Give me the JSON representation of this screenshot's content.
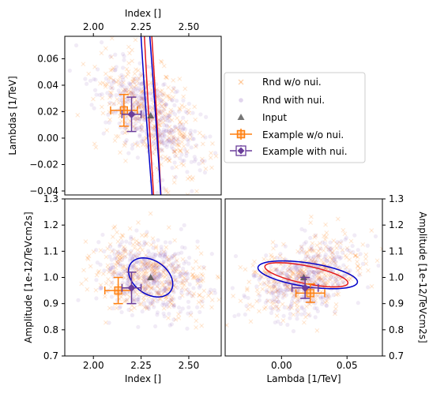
{
  "figure": {
    "legend": {
      "placement": "right of top-left panel",
      "entries": [
        {
          "label": "Rnd w/o nui.",
          "marker": "x-cross",
          "color": "#ff7f0e"
        },
        {
          "label": "Rnd with nui.",
          "marker": "dot",
          "color": "#9467bd"
        },
        {
          "label": "Input",
          "marker": "triangle",
          "color": "#555555"
        },
        {
          "label": "Example w/o nui.",
          "marker": "square-errorbar",
          "color": "#ff7f0e"
        },
        {
          "label": "Example with nui.",
          "marker": "diamond-errorbar",
          "color": "#6a3d9a"
        }
      ]
    }
  },
  "chart_data": [
    {
      "id": "lambda-vs-index",
      "type": "scatter",
      "panel": "top-left",
      "xlabel": "Index []",
      "xlabel_position": "top",
      "ylabel": "Lambdas [1/TeV]",
      "xlim": [
        1.85,
        2.67
      ],
      "ylim": [
        -0.043,
        0.077
      ],
      "xticks": [
        2.0,
        2.25,
        2.5
      ],
      "xtick_labels": [
        "2.00",
        "2.25",
        "2.50"
      ],
      "yticks": [
        -0.04,
        -0.02,
        0.0,
        0.02,
        0.04,
        0.06
      ],
      "ytick_labels": [
        "−0.04",
        "−0.02",
        "0.00",
        "0.02",
        "0.04",
        "0.06"
      ],
      "random_cloud": {
        "center": [
          2.3,
          0.017
        ],
        "sd": [
          0.14,
          0.022
        ],
        "corr": -0.62,
        "n_wo": 360,
        "n_with": 420
      },
      "input": {
        "x": 2.3,
        "y": 0.017
      },
      "example_wo": {
        "x": 2.16,
        "y": 0.021,
        "xerr": 0.07,
        "yerr": 0.012
      },
      "example_with": {
        "x": 2.2,
        "y": 0.018,
        "xerr": 0.05,
        "yerr": 0.013
      },
      "contours": [
        {
          "series": "red",
          "color": "#e41a1c",
          "center": [
            2.31,
            0.019
          ],
          "a": 0.2,
          "b": 0.019,
          "angle_deg": -68
        },
        {
          "series": "blue",
          "color": "#0000c8",
          "center": [
            2.3,
            0.02
          ],
          "a": 0.19,
          "b": 0.022,
          "angle_deg": -64
        }
      ]
    },
    {
      "id": "amplitude-vs-index",
      "type": "scatter",
      "panel": "bottom-left",
      "xlabel": "Index []",
      "ylabel": "Amplitude [1e-12/TeVcm2s]",
      "xlim": [
        1.85,
        2.67
      ],
      "ylim": [
        0.7,
        1.3
      ],
      "xticks": [
        2.0,
        2.25,
        2.5
      ],
      "xtick_labels": [
        "2.00",
        "2.25",
        "2.50"
      ],
      "yticks": [
        0.7,
        0.8,
        0.9,
        1.0,
        1.1,
        1.2,
        1.3
      ],
      "ytick_labels": [
        "0.7",
        "0.8",
        "0.9",
        "1.0",
        "1.1",
        "1.2",
        "1.3"
      ],
      "random_cloud": {
        "center": [
          2.3,
          1.0
        ],
        "sd": [
          0.14,
          0.075
        ],
        "corr": -0.25,
        "n_wo": 360,
        "n_with": 420
      },
      "input": {
        "x": 2.3,
        "y": 1.0
      },
      "example_wo": {
        "x": 2.13,
        "y": 0.95,
        "xerr": 0.07,
        "yerr": 0.05
      },
      "example_with": {
        "x": 2.2,
        "y": 0.96,
        "xerr": 0.05,
        "yerr": 0.06
      },
      "contours": [
        {
          "series": "blue",
          "color": "#0000c8",
          "center": [
            2.3,
            1.0
          ],
          "a": 0.12,
          "b": 0.068,
          "angle_deg": -18
        }
      ]
    },
    {
      "id": "amplitude-vs-lambda",
      "type": "scatter",
      "panel": "bottom-right",
      "xlabel": "Lambda [1/TeV]",
      "ylabel": "Amplitude [1e-12/TeVcm2s]",
      "ylabel_position": "right",
      "xlim": [
        -0.043,
        0.077
      ],
      "ylim": [
        0.7,
        1.3
      ],
      "xticks": [
        0.0,
        0.05
      ],
      "xtick_labels": [
        "0.00",
        "0.05"
      ],
      "yticks": [
        0.7,
        0.8,
        0.9,
        1.0,
        1.1,
        1.2,
        1.3
      ],
      "ytick_labels": [
        "0.7",
        "0.8",
        "0.9",
        "1.0",
        "1.1",
        "1.2",
        "1.3"
      ],
      "random_cloud": {
        "center": [
          0.017,
          1.0
        ],
        "sd": [
          0.022,
          0.075
        ],
        "corr": 0.3,
        "n_wo": 360,
        "n_with": 420
      },
      "input": {
        "x": 0.017,
        "y": 1.0
      },
      "example_wo": {
        "x": 0.022,
        "y": 0.94,
        "xerr": 0.011,
        "yerr": 0.035
      },
      "example_with": {
        "x": 0.018,
        "y": 0.96,
        "xerr": 0.01,
        "yerr": 0.04
      },
      "contours": [
        {
          "series": "red",
          "color": "#e41a1c",
          "center": [
            0.019,
            1.01
          ],
          "a": 0.021,
          "b": 0.052,
          "angle_deg": 30
        },
        {
          "series": "blue",
          "color": "#0000c8",
          "center": [
            0.02,
            1.01
          ],
          "a": 0.03,
          "b": 0.058,
          "angle_deg": 28
        }
      ]
    }
  ]
}
